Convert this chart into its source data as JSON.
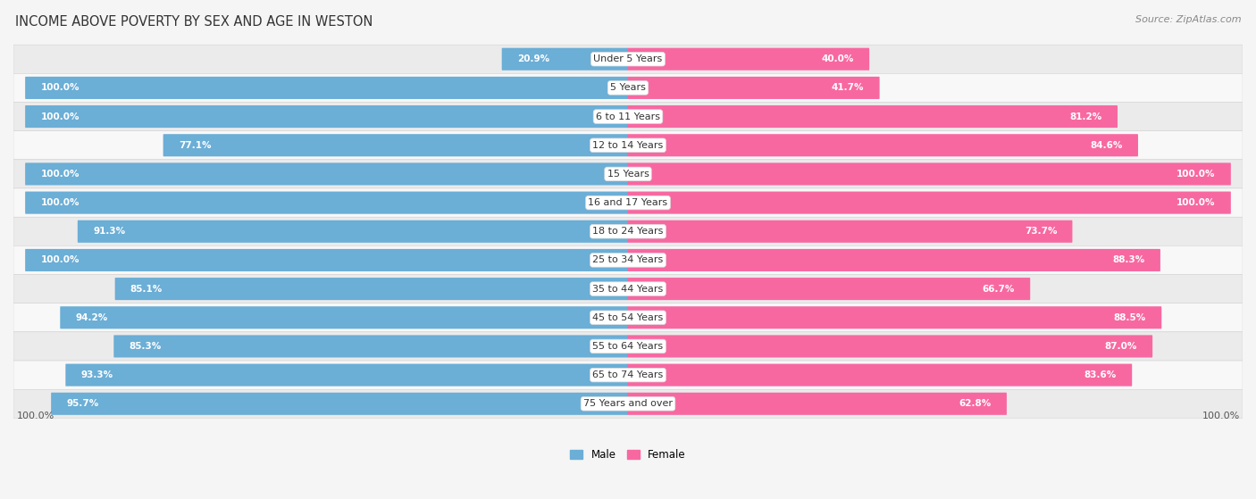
{
  "title": "INCOME ABOVE POVERTY BY SEX AND AGE IN WESTON",
  "source": "Source: ZipAtlas.com",
  "categories": [
    "Under 5 Years",
    "5 Years",
    "6 to 11 Years",
    "12 to 14 Years",
    "15 Years",
    "16 and 17 Years",
    "18 to 24 Years",
    "25 to 34 Years",
    "35 to 44 Years",
    "45 to 54 Years",
    "55 to 64 Years",
    "65 to 74 Years",
    "75 Years and over"
  ],
  "male_values": [
    20.9,
    100.0,
    100.0,
    77.1,
    100.0,
    100.0,
    91.3,
    100.0,
    85.1,
    94.2,
    85.3,
    93.3,
    95.7
  ],
  "female_values": [
    40.0,
    41.7,
    81.2,
    84.6,
    100.0,
    100.0,
    73.7,
    88.3,
    66.7,
    88.5,
    87.0,
    83.6,
    62.8
  ],
  "male_color": "#6baed6",
  "female_color": "#f768a1",
  "male_label": "Male",
  "female_label": "Female",
  "background_color": "#f5f5f5",
  "row_bg_even": "#ebebeb",
  "row_bg_odd": "#f8f8f8",
  "max_value": 100.0,
  "title_fontsize": 10.5,
  "source_fontsize": 8,
  "label_fontsize": 8,
  "bar_label_fontsize": 7.5,
  "category_fontsize": 8
}
